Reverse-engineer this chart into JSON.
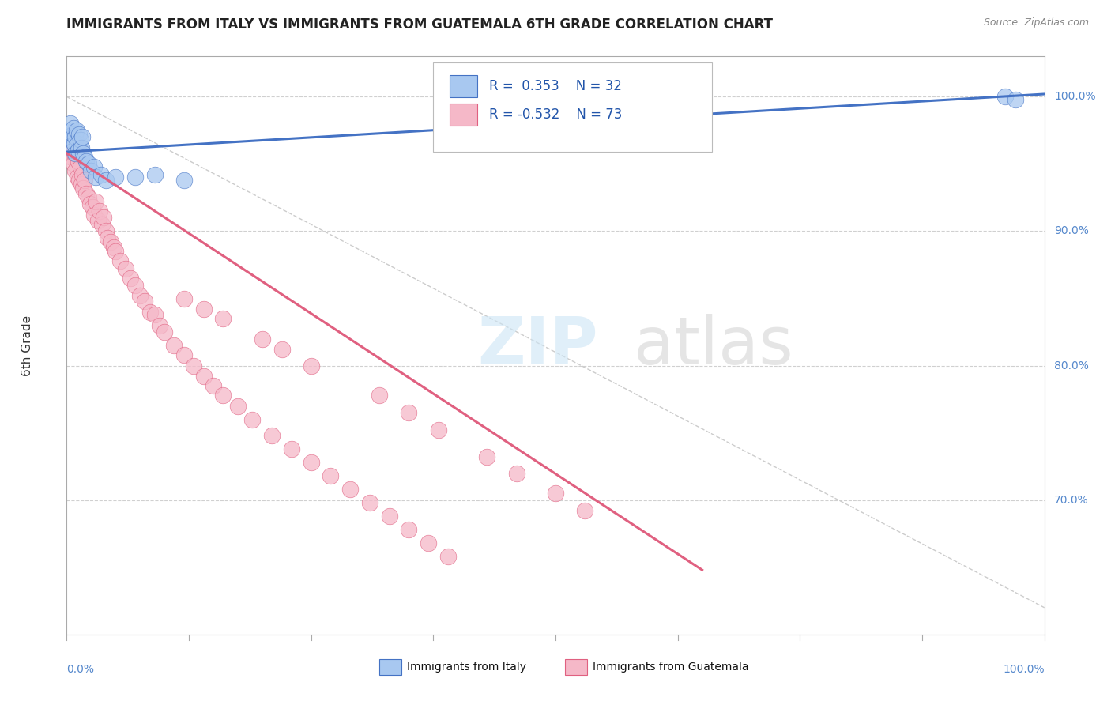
{
  "title": "IMMIGRANTS FROM ITALY VS IMMIGRANTS FROM GUATEMALA 6TH GRADE CORRELATION CHART",
  "source": "Source: ZipAtlas.com",
  "ylabel": "6th Grade",
  "legend_italy": "Immigrants from Italy",
  "legend_guatemala": "Immigrants from Guatemala",
  "R_italy": 0.353,
  "N_italy": 32,
  "R_guatemala": -0.532,
  "N_guatemala": 73,
  "italy_color": "#a8c8f0",
  "guatemala_color": "#f5b8c8",
  "italy_line_color": "#4472c4",
  "guatemala_line_color": "#e06080",
  "xlim": [
    0.0,
    1.0
  ],
  "ylim": [
    0.6,
    1.03
  ],
  "yticks": [
    0.7,
    0.8,
    0.9,
    1.0
  ],
  "ytick_labels": [
    "70.0%",
    "80.0%",
    "90.0%",
    "100.0%"
  ],
  "blue_scatter_x": [
    0.002,
    0.003,
    0.004,
    0.005,
    0.006,
    0.007,
    0.007,
    0.008,
    0.009,
    0.009,
    0.01,
    0.011,
    0.012,
    0.013,
    0.014,
    0.015,
    0.016,
    0.017,
    0.018,
    0.02,
    0.022,
    0.025,
    0.028,
    0.03,
    0.035,
    0.04,
    0.05,
    0.07,
    0.09,
    0.12,
    0.96,
    0.97
  ],
  "blue_scatter_y": [
    0.975,
    0.97,
    0.98,
    0.968,
    0.972,
    0.977,
    0.96,
    0.965,
    0.97,
    0.958,
    0.975,
    0.965,
    0.96,
    0.972,
    0.968,
    0.962,
    0.97,
    0.958,
    0.955,
    0.952,
    0.95,
    0.945,
    0.948,
    0.94,
    0.942,
    0.938,
    0.94,
    0.94,
    0.942,
    0.938,
    1.0,
    0.998
  ],
  "pink_scatter_x": [
    0.002,
    0.003,
    0.004,
    0.005,
    0.006,
    0.007,
    0.008,
    0.009,
    0.01,
    0.011,
    0.012,
    0.013,
    0.014,
    0.015,
    0.016,
    0.017,
    0.018,
    0.02,
    0.022,
    0.024,
    0.026,
    0.028,
    0.03,
    0.032,
    0.034,
    0.036,
    0.038,
    0.04,
    0.042,
    0.045,
    0.048,
    0.05,
    0.055,
    0.06,
    0.065,
    0.07,
    0.075,
    0.08,
    0.085,
    0.09,
    0.095,
    0.1,
    0.11,
    0.12,
    0.13,
    0.14,
    0.15,
    0.16,
    0.175,
    0.19,
    0.21,
    0.23,
    0.25,
    0.27,
    0.29,
    0.31,
    0.33,
    0.35,
    0.37,
    0.39,
    0.12,
    0.14,
    0.16,
    0.2,
    0.22,
    0.25,
    0.32,
    0.35,
    0.38,
    0.43,
    0.46,
    0.5,
    0.53
  ],
  "pink_scatter_y": [
    0.965,
    0.96,
    0.972,
    0.955,
    0.968,
    0.95,
    0.958,
    0.945,
    0.962,
    0.94,
    0.952,
    0.938,
    0.948,
    0.935,
    0.942,
    0.932,
    0.938,
    0.928,
    0.925,
    0.92,
    0.918,
    0.912,
    0.922,
    0.908,
    0.915,
    0.905,
    0.91,
    0.9,
    0.895,
    0.892,
    0.888,
    0.885,
    0.878,
    0.872,
    0.865,
    0.86,
    0.852,
    0.848,
    0.84,
    0.838,
    0.83,
    0.825,
    0.815,
    0.808,
    0.8,
    0.792,
    0.785,
    0.778,
    0.77,
    0.76,
    0.748,
    0.738,
    0.728,
    0.718,
    0.708,
    0.698,
    0.688,
    0.678,
    0.668,
    0.658,
    0.85,
    0.842,
    0.835,
    0.82,
    0.812,
    0.8,
    0.778,
    0.765,
    0.752,
    0.732,
    0.72,
    0.705,
    0.692
  ]
}
